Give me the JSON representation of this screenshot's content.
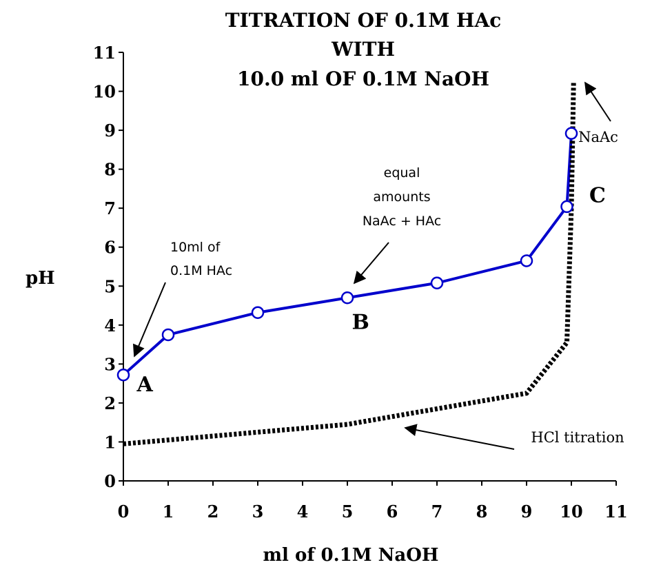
{
  "chart_data": {
    "type": "line",
    "title_lines": [
      "TITRATION OF 0.1M HAc",
      "WITH",
      "10.0 ml OF 0.1M NaOH"
    ],
    "xlabel": "ml of 0.1M NaOH",
    "ylabel": "pH",
    "xlim": [
      0,
      11
    ],
    "ylim": [
      0,
      11
    ],
    "xticks": [
      0,
      1,
      2,
      3,
      4,
      5,
      6,
      7,
      8,
      9,
      10,
      11
    ],
    "yticks": [
      0,
      1,
      2,
      3,
      4,
      5,
      6,
      7,
      8,
      9,
      10,
      11
    ],
    "grid": false,
    "series": [
      {
        "style": "solid-with-markers",
        "color": "#0000cc",
        "x": [
          0,
          1,
          3,
          5,
          7,
          9,
          9.9,
          10.0
        ],
        "y": [
          2.72,
          3.75,
          4.32,
          4.7,
          5.08,
          5.65,
          7.04,
          8.92
        ]
      },
      {
        "style": "dotted",
        "color": "#000000",
        "x": [
          0,
          5,
          9,
          9.9,
          10.0,
          10.05
        ],
        "y": [
          0.95,
          1.45,
          2.25,
          3.55,
          7.0,
          10.25
        ]
      }
    ],
    "point_labels": [
      {
        "text": "A",
        "x": 0.3,
        "y": 2.3
      },
      {
        "text": "B",
        "x": 5.1,
        "y": 3.9
      },
      {
        "text": "C",
        "x": 10.4,
        "y": 7.15
      }
    ],
    "annotations": [
      {
        "lines": [
          "10ml of",
          "0.1M HAc"
        ]
      },
      {
        "lines": [
          "equal",
          "amounts",
          "NaAc  +  HAc"
        ]
      },
      {
        "lines": [
          "NaAc"
        ]
      },
      {
        "lines": [
          "HCl titration"
        ]
      }
    ]
  }
}
